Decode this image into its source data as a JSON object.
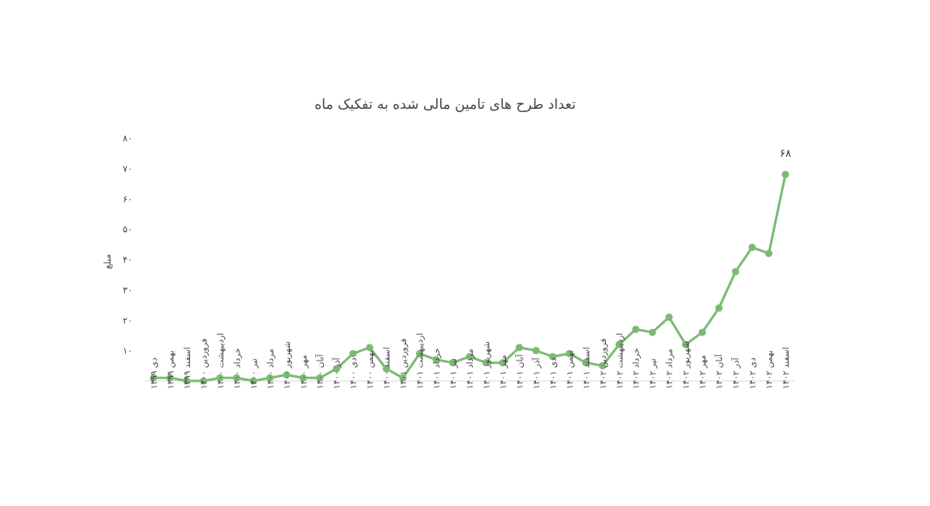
{
  "chart_data": {
    "type": "line",
    "title": "تعداد طرح های تامین مالی شده به تفکیک ماه",
    "xlabel": "",
    "ylabel": "مبلغ",
    "ylim": [
      0,
      80
    ],
    "yticks": [
      10,
      20,
      30,
      40,
      50,
      60,
      70,
      80
    ],
    "ytick_labels": [
      "۱۰",
      "۲۰",
      "۳۰",
      "۴۰",
      "۵۰",
      "۶۰",
      "۷۰",
      "۸۰"
    ],
    "grid": false,
    "legend": "none",
    "line_color": "#7cba74",
    "axis_color": "#d9d9d9",
    "categories": [
      "دی ۱۳۹۹",
      "بهمن ۱۳۹۹",
      "اسفند ۱۳۹۹",
      "فروردین ۱۴۰۰",
      "اردیبهشت ۱۴۰۰",
      "خرداد ۱۴۰۰",
      "تیر ۱۴۰۰",
      "مرداد ۱۴۰۰",
      "شهریور ۱۴۰۰",
      "مهر ۱۴۰۰",
      "آبان ۱۴۰۰",
      "آذر ۱۴۰۰",
      "دی ۱۴۰۰",
      "بهمن ۱۴۰۰",
      "اسفند ۱۴۰۰",
      "فروردین ۱۴۰۱",
      "اردیبهشت ۱۴۰۱",
      "خرداد ۱۴۰۱",
      "تیر ۱۴۰۱",
      "مرداد ۱۴۰۱",
      "شهریور ۱۴۰۱",
      "مهر ۱۴۰۱",
      "آبان ۱۴۰۱",
      "آذر ۱۴۰۱",
      "دی ۱۴۰۱",
      "بهمن ۱۴۰۱",
      "اسفند ۱۴۰۱",
      "فروردین ۱۴۰۲",
      "اردیبهشت ۱۴۰۲",
      "خرداد ۱۴۰۲",
      "تیر ۱۴۰۲",
      "مرداد ۱۴۰۲",
      "شهریور ۱۴۰۲",
      "مهر ۱۴۰۲",
      "آبان ۱۴۰۲",
      "آذر ۱۴۰۲",
      "دی ۱۴۰۲",
      "بهمن ۱۴۰۲",
      "اسفند ۱۴۰۲"
    ],
    "values": [
      1,
      1,
      0,
      0,
      1,
      1,
      0,
      1,
      2,
      1,
      1,
      4,
      9,
      11,
      4,
      1,
      9,
      7,
      6,
      8,
      6,
      6,
      11,
      10,
      8,
      9,
      6,
      5,
      12,
      17,
      16,
      21,
      12,
      16,
      24,
      36,
      44,
      42,
      68
    ],
    "data_labels": [
      {
        "index": 38,
        "text": "۶۸"
      }
    ]
  }
}
